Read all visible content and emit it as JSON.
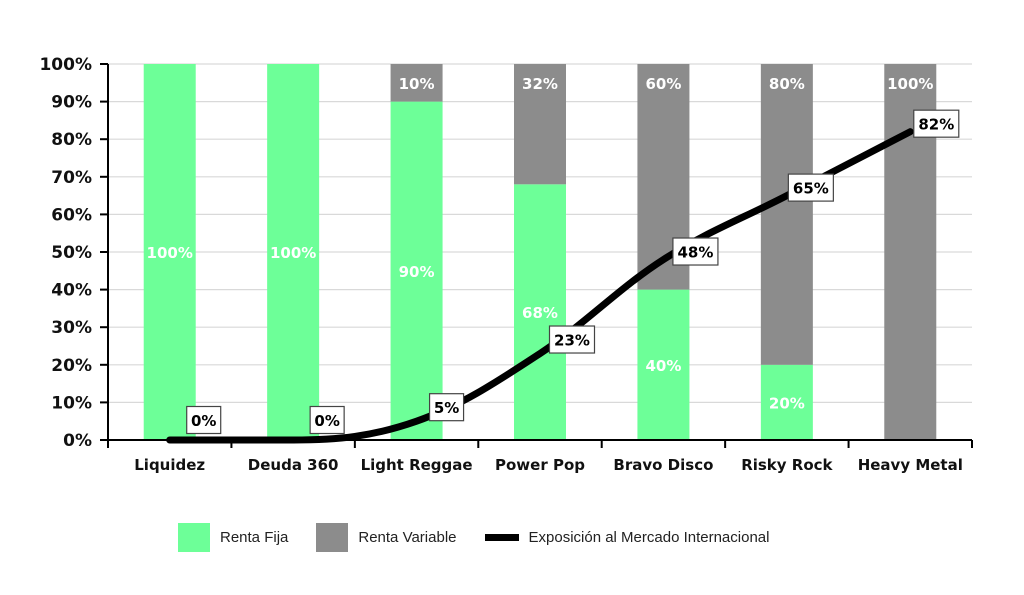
{
  "chart_data": {
    "type": "bar",
    "stacked": true,
    "title": "",
    "xlabel": "",
    "ylabel": "",
    "ylim": [
      0,
      100
    ],
    "yticks": [
      "0%",
      "10%",
      "20%",
      "30%",
      "40%",
      "50%",
      "60%",
      "70%",
      "80%",
      "90%",
      "100%"
    ],
    "grid": true,
    "legend_position": "bottom",
    "categories": [
      "Liquidez",
      "Deuda 360",
      "Light Reggae",
      "Power Pop",
      "Bravo Disco",
      "Risky Rock",
      "Heavy Metal"
    ],
    "series": [
      {
        "name": "Renta Fija",
        "type": "bar",
        "color": "#6dff98",
        "values": [
          100,
          100,
          90,
          68,
          40,
          20,
          0
        ],
        "labels": [
          "100%",
          "100%",
          "90%",
          "68%",
          "40%",
          "20%",
          ""
        ]
      },
      {
        "name": "Renta Variable",
        "type": "bar",
        "color": "#8c8c8c",
        "values": [
          0,
          0,
          10,
          32,
          60,
          80,
          100
        ],
        "labels": [
          "",
          "",
          "10%",
          "32%",
          "60%",
          "80%",
          "100%"
        ]
      },
      {
        "name": "Exposición al Mercado Internacional",
        "type": "line",
        "color": "#000000",
        "values": [
          0,
          0,
          5,
          23,
          48,
          65,
          82
        ],
        "labels": [
          "0%",
          "0%",
          "5%",
          "23%",
          "48%",
          "65%",
          "82%"
        ]
      }
    ]
  },
  "legend": {
    "items": [
      {
        "label": "Renta Fija",
        "color": "#6dff98"
      },
      {
        "label": "Renta Variable",
        "color": "#8c8c8c"
      },
      {
        "label": "Exposición al Mercado Internacional",
        "color": "#000000"
      }
    ]
  }
}
